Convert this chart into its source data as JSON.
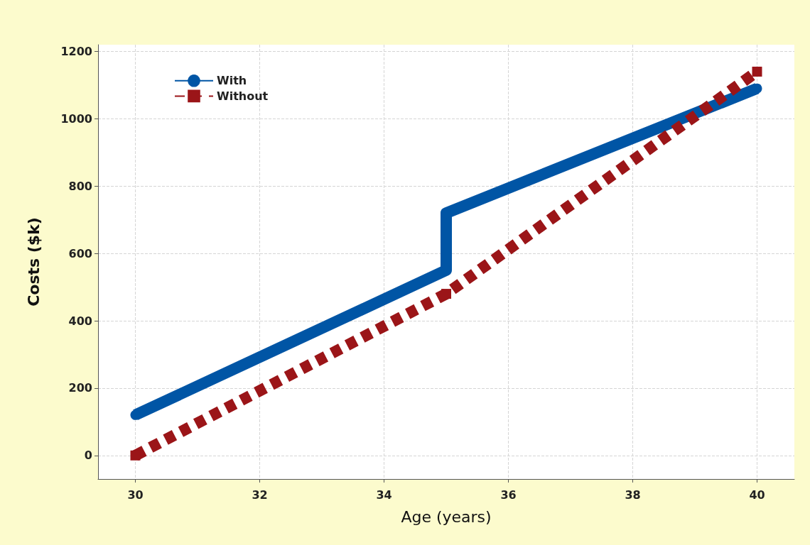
{
  "chart_data": {
    "type": "line",
    "xlabel": "Age (years)",
    "ylabel": "Costs ($k)",
    "xlim": [
      29.4,
      40.6
    ],
    "xticks": [
      30,
      32,
      34,
      36,
      38,
      40
    ],
    "ylim": [
      -70,
      1220
    ],
    "yticks": [
      0,
      200,
      400,
      600,
      800,
      1000,
      1200
    ],
    "grid": true,
    "legend": "top left",
    "series": [
      {
        "name": "With",
        "color": "#0055a5",
        "x": [
          30,
          35,
          35,
          40
        ],
        "values": [
          120,
          550,
          720,
          1090
        ],
        "marker": "circle",
        "line_style": "solid"
      },
      {
        "name": "Without",
        "color": "#9b1518",
        "x": [
          30,
          35,
          40
        ],
        "values": [
          0,
          480,
          1140
        ],
        "marker": "square",
        "line_style": "dashed"
      }
    ]
  }
}
